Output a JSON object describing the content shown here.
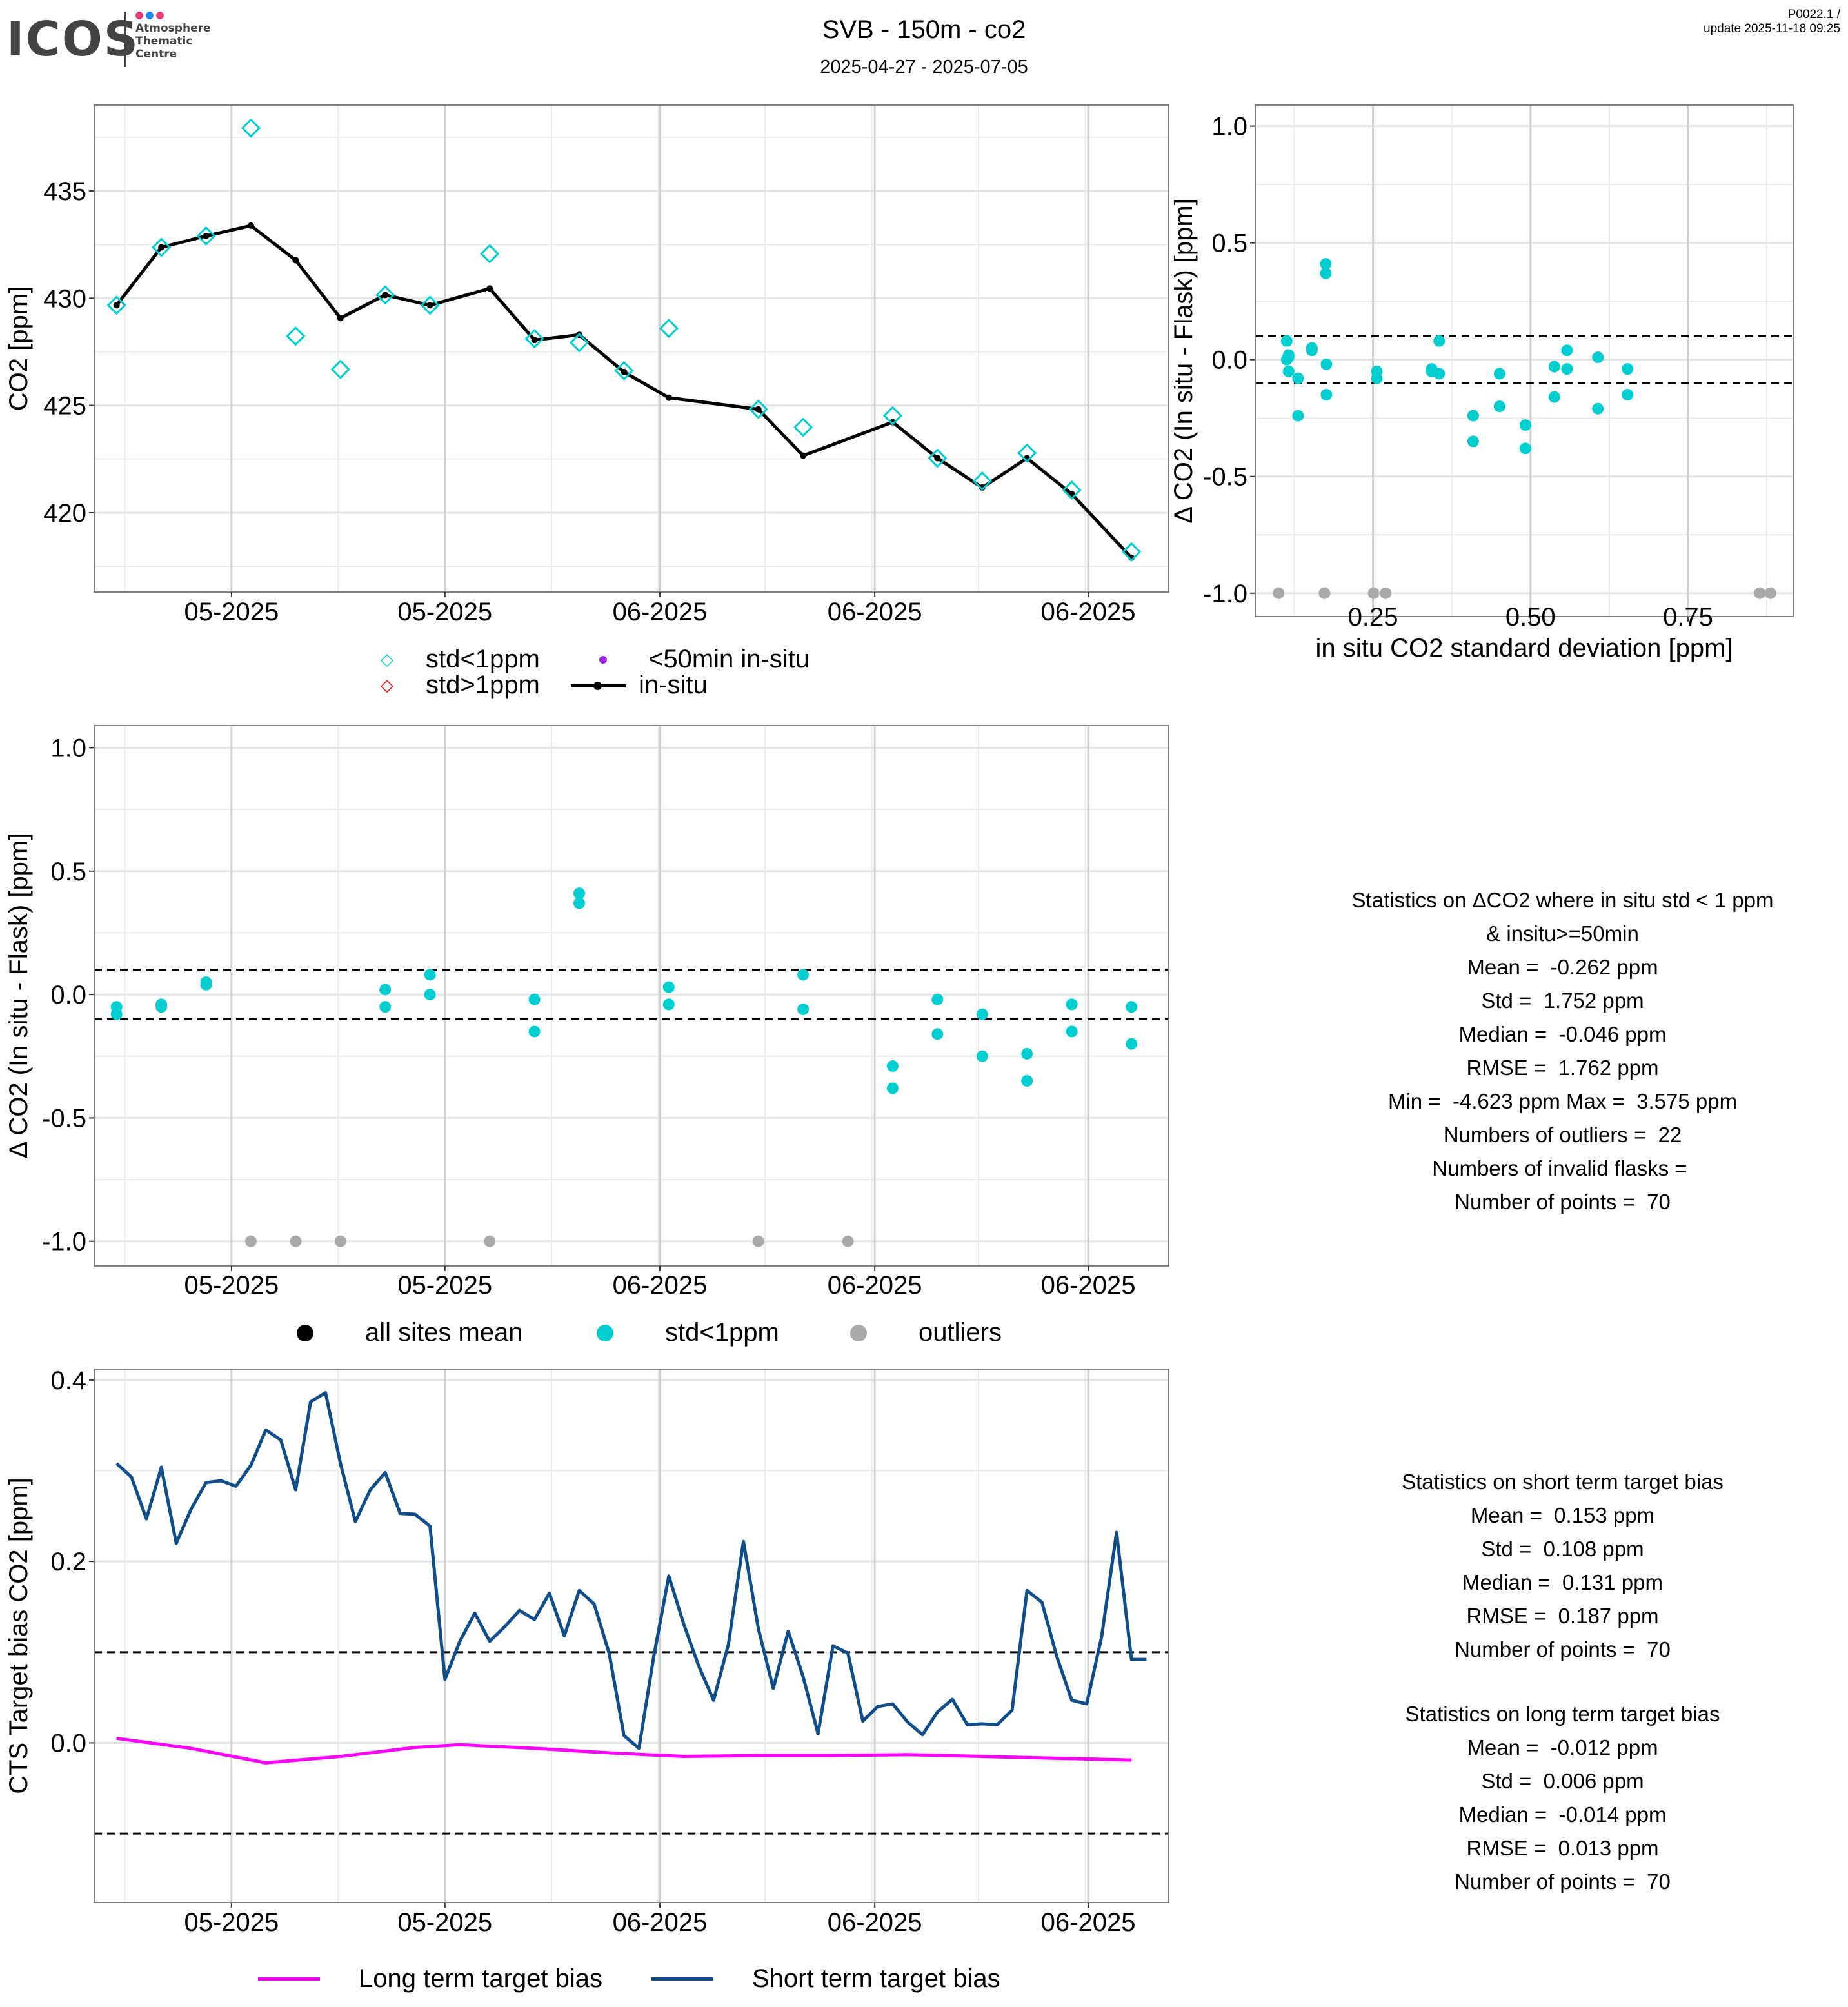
{
  "header": {
    "logo": {
      "word": "ICOS",
      "subtitle_lines": [
        "Atmosphere",
        "Thematic",
        "Centre"
      ],
      "dot_colors": [
        "#e83e74",
        "#1e8fe6",
        "#e83e74"
      ]
    },
    "title": "SVB - 150m - co2",
    "subtitle": "2025-04-27 - 2025-07-05",
    "version_line1": "P0022.1 /",
    "version_line2": "update  2025-11-18 09:25"
  },
  "colors": {
    "cyan": "#00CED1",
    "red": "#FF0000",
    "purple": "#A020F0",
    "grey": "#A9A9A9",
    "black": "#000000",
    "magenta": "#FF00FF",
    "navy": "#104E8B"
  },
  "chart_data": [
    {
      "id": "co2_timeseries",
      "type": "line",
      "title": "",
      "xlabel": "",
      "ylabel": "CO2 [ppm]",
      "x_unit": "days since first sample (2025-04-27)",
      "xlim": [
        -1.5,
        70.5
      ],
      "ylim": [
        416.3,
        439.0
      ],
      "yticks": [
        420,
        425,
        430,
        435
      ],
      "ytick_labels": [
        "420",
        "425",
        "430",
        "435"
      ],
      "xticks": [
        7.7,
        22.0,
        36.4,
        50.8,
        65.1
      ],
      "xtick_labels": [
        "05-2025",
        "05-2025",
        "06-2025",
        "06-2025",
        "06-2025"
      ],
      "grid": true,
      "series": [
        {
          "name": "in-situ",
          "kind": "line-with-points",
          "color": "#000000",
          "x": [
            0,
            3,
            6,
            9,
            12,
            15,
            18,
            21,
            25,
            28,
            31,
            34,
            37,
            43,
            46,
            52,
            55,
            58,
            61,
            64,
            68
          ],
          "y": [
            429.67,
            432.37,
            432.9,
            433.38,
            431.77,
            429.07,
            430.15,
            429.67,
            430.45,
            428.05,
            428.29,
            426.56,
            425.36,
            424.82,
            422.66,
            424.22,
            422.54,
            421.17,
            422.54,
            420.87,
            417.9
          ]
        },
        {
          "name": "std<1ppm",
          "kind": "diamond",
          "color": "#00CED1",
          "x": [
            0,
            3,
            6,
            9,
            12,
            15,
            18,
            21,
            25,
            28,
            31,
            34,
            37,
            43,
            46,
            52,
            55,
            58,
            61,
            64,
            68
          ],
          "y": [
            429.67,
            432.37,
            432.9,
            437.93,
            428.23,
            426.68,
            430.15,
            429.67,
            432.07,
            428.11,
            427.93,
            426.62,
            428.59,
            424.82,
            423.98,
            424.52,
            422.54,
            421.47,
            422.78,
            421.05,
            418.17
          ]
        }
      ],
      "legend": {
        "placement": "bottom",
        "items": [
          {
            "label": "std<1ppm",
            "symbol": "diamond",
            "color": "#00CED1"
          },
          {
            "label": "<50min in-situ",
            "symbol": "dot",
            "color": "#A020F0"
          },
          {
            "label": "std>1ppm",
            "symbol": "diamond",
            "color": "#FF0000"
          },
          {
            "label": "in-situ",
            "symbol": "line-dot",
            "color": "#000000"
          }
        ]
      }
    },
    {
      "id": "delta_vs_std_scatter",
      "type": "scatter",
      "title": "",
      "xlabel": "in situ CO2 standard deviation [ppm]",
      "ylabel": "Δ CO2 (In situ - Flask) [ppm]",
      "xlim": [
        0.063,
        0.917
      ],
      "ylim": [
        -1.1,
        1.09
      ],
      "xticks": [
        0.25,
        0.5,
        0.75
      ],
      "xtick_labels": [
        "0.25",
        "0.50",
        "0.75"
      ],
      "yticks": [
        -1.0,
        -0.5,
        0.0,
        0.5,
        1.0
      ],
      "ytick_labels": [
        "-1.0",
        "-0.5",
        "0.0",
        "0.5",
        "1.0"
      ],
      "hlines": [
        0.1,
        -0.1
      ],
      "grid": true,
      "series": [
        {
          "name": "std<1ppm",
          "color": "#00CED1",
          "x": [
            0.113,
            0.116,
            0.116,
            0.113,
            0.116,
            0.131,
            0.131,
            0.153,
            0.153,
            0.175,
            0.175,
            0.176,
            0.176,
            0.256,
            0.256,
            0.343,
            0.343,
            0.355,
            0.355,
            0.409,
            0.409,
            0.451,
            0.451,
            0.492,
            0.492,
            0.538,
            0.538,
            0.558,
            0.558,
            0.607,
            0.607,
            0.654,
            0.654
          ],
          "y": [
            0.08,
            0.02,
            0.01,
            0.0,
            -0.05,
            -0.08,
            -0.24,
            0.05,
            0.04,
            0.41,
            0.37,
            -0.02,
            -0.15,
            -0.05,
            -0.08,
            -0.04,
            -0.05,
            0.08,
            -0.06,
            -0.24,
            -0.35,
            -0.06,
            -0.2,
            -0.28,
            -0.38,
            -0.03,
            -0.16,
            0.04,
            -0.04,
            0.01,
            -0.21,
            -0.04,
            -0.15
          ]
        },
        {
          "name": "outliers",
          "color": "#A9A9A9",
          "x": [
            0.1,
            0.173,
            0.251,
            0.27,
            0.864,
            0.881
          ],
          "y": [
            -1.0,
            -1.0,
            -1.0,
            -1.0,
            -1.0,
            -1.0
          ]
        }
      ]
    },
    {
      "id": "delta_timeseries",
      "type": "scatter",
      "title": "",
      "xlabel": "",
      "ylabel": "Δ CO2 (In situ - Flask) [ppm]",
      "x_unit": "days since first sample (2025-04-27)",
      "xlim": [
        -1.5,
        70.5
      ],
      "ylim": [
        -1.1,
        1.09
      ],
      "xticks": [
        7.7,
        22.0,
        36.4,
        50.8,
        65.1
      ],
      "xtick_labels": [
        "05-2025",
        "05-2025",
        "06-2025",
        "06-2025",
        "06-2025"
      ],
      "yticks": [
        -1.0,
        -0.5,
        0.0,
        0.5,
        1.0
      ],
      "ytick_labels": [
        "-1.0",
        "-0.5",
        "0.0",
        "0.5",
        "1.0"
      ],
      "hlines": [
        0.1,
        -0.1
      ],
      "grid": true,
      "series": [
        {
          "name": "std<1ppm",
          "color": "#00CED1",
          "x": [
            0,
            0,
            3,
            3,
            6,
            6,
            18,
            18,
            21,
            21,
            28,
            28,
            31,
            31,
            37,
            37,
            46,
            46,
            52,
            52,
            55,
            55,
            58,
            58,
            61,
            61,
            64,
            64,
            68,
            68
          ],
          "y": [
            -0.05,
            -0.08,
            -0.04,
            -0.05,
            0.05,
            0.04,
            0.02,
            -0.05,
            0.08,
            0.0,
            -0.02,
            -0.15,
            0.41,
            0.37,
            0.03,
            -0.04,
            0.08,
            -0.06,
            -0.29,
            -0.38,
            -0.02,
            -0.16,
            -0.08,
            -0.25,
            -0.24,
            -0.35,
            -0.04,
            -0.15,
            -0.05,
            -0.2
          ]
        },
        {
          "name": "outliers",
          "color": "#A9A9A9",
          "x": [
            9,
            12,
            15,
            25,
            43,
            49
          ],
          "y": [
            -1.0,
            -1.0,
            -1.0,
            -1.0,
            -1.0,
            -1.0
          ]
        }
      ],
      "legend": {
        "placement": "bottom",
        "items": [
          {
            "label": "all sites mean",
            "color": "#000000"
          },
          {
            "label": "std<1ppm",
            "color": "#00CED1"
          },
          {
            "label": "outliers",
            "color": "#A9A9A9"
          }
        ]
      }
    },
    {
      "id": "cts_target_bias",
      "type": "line",
      "title": "",
      "xlabel": "",
      "ylabel": "CTS Target bias CO2 [ppm]",
      "x_unit": "days since first sample (2025-04-27)",
      "xlim": [
        -1.5,
        70.5
      ],
      "ylim": [
        -0.176,
        0.412
      ],
      "xticks": [
        7.7,
        22.0,
        36.4,
        50.8,
        65.1
      ],
      "xtick_labels": [
        "05-2025",
        "05-2025",
        "06-2025",
        "06-2025",
        "06-2025"
      ],
      "yticks": [
        0.0,
        0.2,
        0.4
      ],
      "ytick_labels": [
        "0.0",
        "0.2",
        "0.4"
      ],
      "hlines": [
        0.1,
        -0.1
      ],
      "grid": true,
      "series": [
        {
          "name": "Short term target bias",
          "color": "#104E8B",
          "x": [
            0,
            1,
            2,
            3,
            4,
            5,
            6,
            7,
            8,
            9,
            10,
            11,
            12,
            13,
            14,
            15,
            16,
            17,
            18,
            19,
            20,
            21,
            22,
            23,
            24,
            25,
            26,
            27,
            28,
            29,
            30,
            31,
            32,
            33,
            34,
            35,
            36,
            37,
            38,
            39,
            40,
            41,
            42,
            43,
            44,
            45,
            46,
            47,
            48,
            49,
            50,
            51,
            52,
            53,
            54,
            55,
            56,
            57,
            58,
            59,
            60,
            61,
            62,
            63,
            64,
            65,
            66,
            67,
            68,
            69
          ],
          "y": [
            0.308,
            0.293,
            0.247,
            0.304,
            0.22,
            0.258,
            0.287,
            0.289,
            0.283,
            0.306,
            0.345,
            0.334,
            0.279,
            0.376,
            0.386,
            0.308,
            0.244,
            0.279,
            0.298,
            0.253,
            0.252,
            0.239,
            0.07,
            0.112,
            0.143,
            0.112,
            0.128,
            0.146,
            0.136,
            0.165,
            0.118,
            0.168,
            0.153,
            0.099,
            0.008,
            -0.006,
            0.096,
            0.184,
            0.131,
            0.085,
            0.047,
            0.109,
            0.222,
            0.126,
            0.06,
            0.123,
            0.073,
            0.01,
            0.107,
            0.099,
            0.024,
            0.04,
            0.043,
            0.023,
            0.009,
            0.034,
            0.048,
            0.02,
            0.021,
            0.02,
            0.036,
            0.168,
            0.155,
            0.095,
            0.047,
            0.043,
            0.117,
            0.232,
            0.092,
            0.092
          ]
        },
        {
          "name": "Long term target bias",
          "color": "#FF00FF",
          "x": [
            0,
            5,
            10,
            15,
            20,
            23,
            28,
            33,
            38,
            43,
            48,
            53,
            58,
            63,
            68
          ],
          "y": [
            0.005,
            -0.006,
            -0.022,
            -0.015,
            -0.005,
            -0.002,
            -0.006,
            -0.011,
            -0.015,
            -0.014,
            -0.014,
            -0.013,
            -0.015,
            -0.017,
            -0.019
          ]
        }
      ],
      "legend": {
        "placement": "bottom",
        "items": [
          {
            "label": "Long term target bias",
            "color": "#FF00FF"
          },
          {
            "label": "Short term target bias",
            "color": "#104E8B"
          }
        ]
      }
    }
  ],
  "stats_delta": {
    "lines": [
      "Statistics on ΔCO2 where in situ std < 1 ppm",
      "& insitu>=50min",
      "Mean =  -0.262 ppm",
      "Std =  1.752 ppm",
      "Median =  -0.046 ppm",
      "RMSE =  1.762 ppm",
      "Min =  -4.623 ppm Max =  3.575 ppm",
      "Numbers of outliers =  22",
      "Numbers of invalid flasks = ",
      "Number of points =  70"
    ]
  },
  "stats_short": {
    "lines": [
      "Statistics on short term target bias",
      "Mean =  0.153 ppm",
      "Std =  0.108 ppm",
      "Median =  0.131 ppm",
      "RMSE =  0.187 ppm",
      "Number of points =  70"
    ]
  },
  "stats_long": {
    "lines": [
      "Statistics on long term target bias",
      "Mean =  -0.012 ppm",
      "Std =  0.006 ppm",
      "Median =  -0.014 ppm",
      "RMSE =  0.013 ppm",
      "Number of points =  70"
    ]
  }
}
